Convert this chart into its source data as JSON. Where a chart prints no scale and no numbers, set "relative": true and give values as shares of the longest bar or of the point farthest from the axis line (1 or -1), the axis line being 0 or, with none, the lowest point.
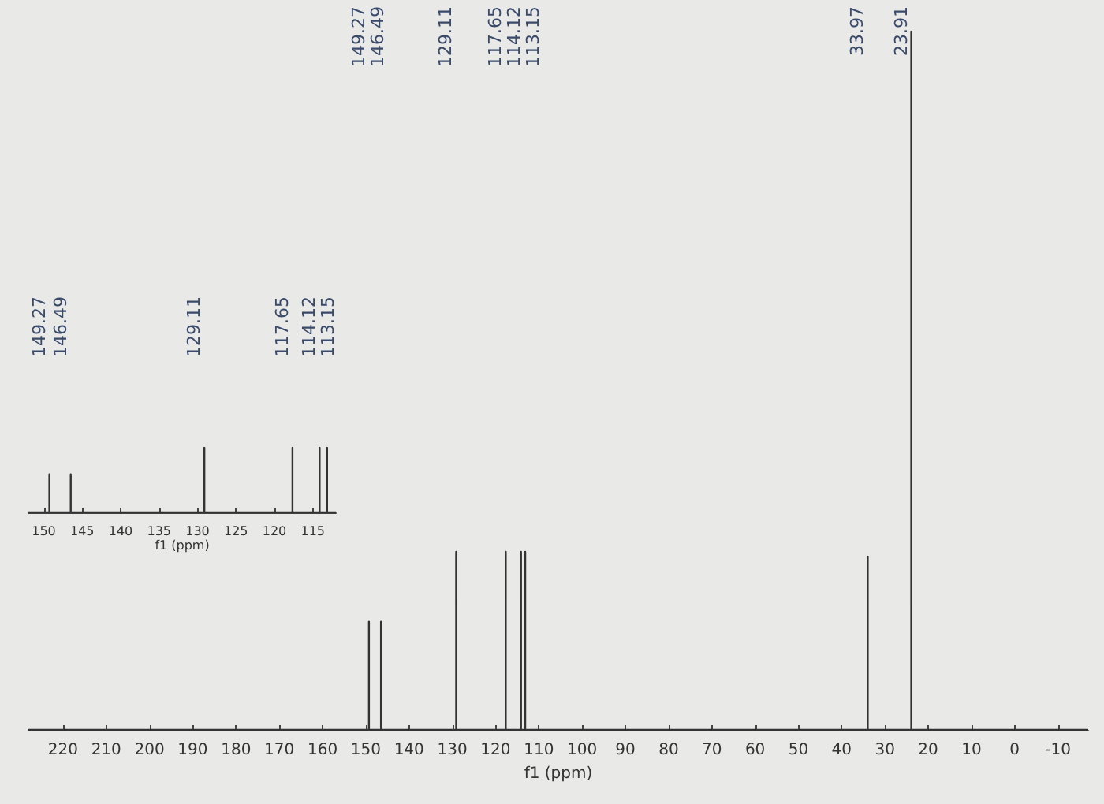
{
  "chart_data": [
    {
      "type": "line",
      "relative": true,
      "xlabel": "f1 (ppm)",
      "xlim": [
        228,
        -17
      ],
      "xticks": [
        220,
        210,
        200,
        190,
        180,
        170,
        160,
        150,
        140,
        130,
        120,
        110,
        100,
        90,
        80,
        70,
        60,
        50,
        40,
        30,
        20,
        10,
        0,
        -10
      ],
      "color": "#333333",
      "x": [
        228,
        149.27,
        149.27,
        149.27,
        146.49,
        146.49,
        146.49,
        129.11,
        129.11,
        129.11,
        117.65,
        117.65,
        117.65,
        114.12,
        114.12,
        114.12,
        113.15,
        113.15,
        113.15,
        33.97,
        33.97,
        33.97,
        23.91,
        23.91,
        23.91,
        -17
      ],
      "values": [
        0,
        0,
        0.155,
        0,
        0,
        0.155,
        0,
        0,
        0.255,
        0,
        0,
        0.255,
        0,
        0,
        0.255,
        0,
        0,
        0.255,
        0,
        0,
        0.248,
        0,
        0,
        1,
        0,
        0
      ],
      "annotations": [
        "149.27",
        "146.49",
        "129.11",
        "117.65",
        "114.12",
        "113.15",
        "33.97",
        "23.91"
      ]
    },
    {
      "type": "line",
      "relative": true,
      "xlabel": "f1 (ppm)",
      "xlim": [
        152,
        112
      ],
      "xticks": [
        150,
        145,
        140,
        135,
        130,
        125,
        120,
        115
      ],
      "color": "#333333",
      "x": [
        152,
        149.27,
        149.27,
        149.27,
        146.49,
        146.49,
        146.49,
        129.11,
        129.11,
        129.11,
        117.65,
        117.65,
        117.65,
        114.12,
        114.12,
        114.12,
        113.15,
        113.15,
        113.15,
        112
      ],
      "values": [
        0,
        0,
        0.59,
        0,
        0,
        0.59,
        0,
        0,
        1,
        0,
        0,
        1,
        0,
        0,
        1,
        0,
        0,
        1,
        0,
        0
      ],
      "annotations": [
        "149.27",
        "146.49",
        "129.11",
        "117.65",
        "114.12",
        "113.15"
      ]
    }
  ]
}
